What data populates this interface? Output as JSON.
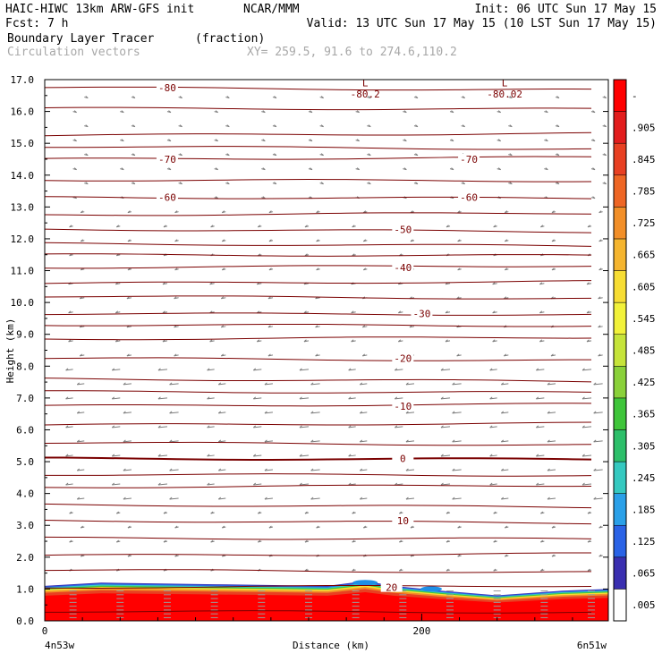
{
  "header": {
    "line1_left": "HAIC-HIWC 13km ARW-GFS init",
    "line1_mid": "NCAR/MMM",
    "line1_right": "Init: 06 UTC Sun 17 May 15",
    "line2_left": "Fcst:    7 h",
    "line2_right": "Valid: 13 UTC Sun 17 May 15 (10 LST Sun 17 May 15)",
    "line3_field": "Boundary Layer Tracer",
    "line3_units": "(fraction)",
    "line4_field": "Circulation vectors",
    "line4_xy": "XY= 259.5, 91.6 to 274.6,110.2"
  },
  "chart_data": {
    "type": "heatmap",
    "title": "Boundary Layer Tracer",
    "units": "(fraction)",
    "xlabel": "Distance (km)",
    "ylabel": "Height (km)",
    "xlim": [
      0,
      299
    ],
    "ylim": [
      0,
      17
    ],
    "x_tick_labels": [
      {
        "x": 0,
        "label": "0"
      },
      {
        "x": 200,
        "label": "200"
      }
    ],
    "x_end_labels": {
      "left": "4n53w",
      "right": "6n51w"
    },
    "y_ticks": [
      0.0,
      1.0,
      2.0,
      3.0,
      4.0,
      5.0,
      6.0,
      7.0,
      8.0,
      9.0,
      10.0,
      11.0,
      12.0,
      13.0,
      14.0,
      15.0,
      16.0,
      17.0
    ],
    "y_tick_labels": [
      "0.0",
      "1.0",
      "2.0",
      "3.0",
      "4.0",
      "5.0",
      "6.0",
      "7.0",
      "8.0",
      "9.0",
      "10.0",
      "11.0",
      "12.0",
      "13.0",
      "14.0",
      "15.0",
      "16.0",
      "17.0"
    ],
    "colorbar": {
      "labels": [
        ".005",
        ".065",
        ".125",
        ".185",
        ".245",
        ".305",
        ".365",
        ".425",
        ".485",
        ".545",
        ".605",
        ".665",
        ".725",
        ".785",
        ".845",
        ".905",
        "-"
      ],
      "colors": [
        "#ffffff",
        "#3a2fb0",
        "#2a63e6",
        "#2aa0e8",
        "#35c9c0",
        "#2dbf6a",
        "#3fc53a",
        "#8ad13a",
        "#c6e43a",
        "#f2f23a",
        "#f7dd33",
        "#f5b52f",
        "#f28f28",
        "#ee6624",
        "#e84022",
        "#e21d1d",
        "#ff0000"
      ]
    },
    "temperature_contours": [
      {
        "label": "-80",
        "y": 16.75
      },
      {
        "label": "-70",
        "y": 14.5
      },
      {
        "label": "-60",
        "y": 13.3
      },
      {
        "label": "-50",
        "y": 12.3
      },
      {
        "label": "-40",
        "y": 11.1
      },
      {
        "label": "-30",
        "y": 9.65
      },
      {
        "label": "-20",
        "y": 8.25
      },
      {
        "label": "-10",
        "y": 6.75
      },
      {
        "label": "0",
        "y": 5.1
      },
      {
        "label": "10",
        "y": 3.15
      },
      {
        "label": "20",
        "y": 1.05
      }
    ],
    "extra_contour_labels": [
      {
        "label": "-80.2",
        "x": 170,
        "y": 16.55
      },
      {
        "label": "-80.02",
        "x": 244,
        "y": 16.55
      },
      {
        "label": "L",
        "x": 170,
        "y": 16.9
      },
      {
        "label": "L",
        "x": 244,
        "y": 16.9
      }
    ],
    "boundary_layer_top_km": [
      {
        "x": 0,
        "y": 1.1
      },
      {
        "x": 30,
        "y": 1.2
      },
      {
        "x": 90,
        "y": 1.15
      },
      {
        "x": 150,
        "y": 1.1
      },
      {
        "x": 170,
        "y": 1.25
      },
      {
        "x": 185,
        "y": 1.1
      },
      {
        "x": 210,
        "y": 0.95
      },
      {
        "x": 240,
        "y": 0.8
      },
      {
        "x": 275,
        "y": 0.95
      },
      {
        "x": 299,
        "y": 1.0
      }
    ]
  }
}
